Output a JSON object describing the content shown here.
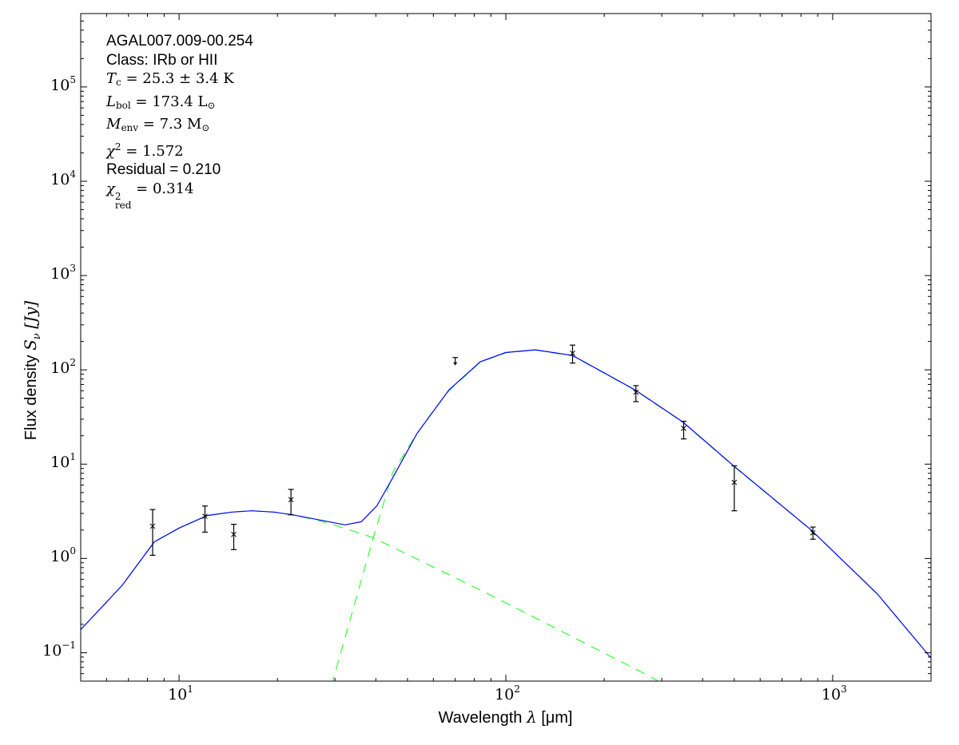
{
  "chart_data": {
    "type": "scatter",
    "xlabel": "Wavelength λ [μm]",
    "xlabel_parts": {
      "text": "Wavelength ",
      "symbol": "λ",
      "unit": "[μm]"
    },
    "ylabel": "Flux density S_ν [Jy]",
    "ylabel_parts": {
      "text": "Flux density ",
      "symbol": "S",
      "sub": "ν",
      "unit": "[Jy]"
    },
    "xscale": "log",
    "yscale": "log",
    "xlim": [
      5,
      2000
    ],
    "ylim": [
      0.05,
      600000
    ],
    "grid": false,
    "x_ticks": [
      {
        "base": "10",
        "exp": "1",
        "value": 10
      },
      {
        "base": "10",
        "exp": "2",
        "value": 100
      },
      {
        "base": "10",
        "exp": "3",
        "value": 1000
      }
    ],
    "y_ticks": [
      {
        "base": "10",
        "exp": "−1",
        "value": 0.1
      },
      {
        "base": "10",
        "exp": "0",
        "value": 1
      },
      {
        "base": "10",
        "exp": "1",
        "value": 10
      },
      {
        "base": "10",
        "exp": "2",
        "value": 100
      },
      {
        "base": "10",
        "exp": "3",
        "value": 1000
      },
      {
        "base": "10",
        "exp": "4",
        "value": 10000
      },
      {
        "base": "10",
        "exp": "5",
        "value": 100000
      }
    ],
    "annotations": {
      "source": "AGAL007.009-00.254",
      "class": "Class: IRb or HII",
      "tc": {
        "symbol": "T",
        "sub": "c",
        "rest": " = 25.3 ± 3.4 K"
      },
      "lbol": {
        "symbol": "L",
        "sub": "bol",
        "rest": " = 173.4 L",
        "rest_sub": "⊙"
      },
      "menv": {
        "symbol": "M",
        "sub": "env",
        "rest": " = 7.3 M",
        "rest_sub": "⊙"
      },
      "chi2": {
        "symbol": "χ",
        "sup": "2",
        "rest": " = 1.572"
      },
      "residual": "Residual = 0.210",
      "chi2red": {
        "symbol": "χ",
        "sup": "2",
        "sub": "red",
        "rest": " = 0.314"
      }
    },
    "colors": {
      "total_fit": "#0000ff",
      "components": "#33ff33",
      "data": "#000000"
    },
    "points": [
      {
        "x": 8.3,
        "y": 2.2,
        "ylo": 1.08,
        "yhi": 3.3
      },
      {
        "x": 12,
        "y": 2.8,
        "ylo": 1.9,
        "yhi": 3.6
      },
      {
        "x": 14.7,
        "y": 1.8,
        "ylo": 1.24,
        "yhi": 2.3
      },
      {
        "x": 22,
        "y": 4.2,
        "ylo": 2.9,
        "yhi": 5.4
      },
      {
        "x": 160,
        "y": 150,
        "ylo": 118,
        "yhi": 183
      },
      {
        "x": 250,
        "y": 58,
        "ylo": 46,
        "yhi": 68
      },
      {
        "x": 350,
        "y": 24,
        "ylo": 18.5,
        "yhi": 28.5
      },
      {
        "x": 500,
        "y": 6.4,
        "ylo": 3.2,
        "yhi": 9.6
      },
      {
        "x": 870,
        "y": 1.87,
        "ylo": 1.6,
        "yhi": 2.15
      }
    ],
    "upper_limits": [
      {
        "x": 70,
        "y": 135
      }
    ],
    "series": [
      {
        "role": "total",
        "style": "solid",
        "x": [
          5,
          6.7,
          8.4,
          10,
          12.2,
          14.5,
          16.7,
          19.5,
          22.3,
          27,
          32.2,
          36.1,
          40.3,
          45.1,
          53.4,
          66.9,
          83.5,
          100,
          123,
          160,
          249,
          348,
          494,
          860,
          1370,
          2000
        ],
        "y": [
          0.176,
          0.52,
          1.5,
          2.1,
          2.85,
          3.1,
          3.2,
          3.1,
          2.9,
          2.55,
          2.27,
          2.45,
          3.62,
          7.2,
          21,
          61,
          122,
          153,
          163,
          142,
          61,
          28,
          9.8,
          2.0,
          0.42,
          0.088
        ]
      },
      {
        "role": "warm-component",
        "style": "dashed",
        "x": [
          5,
          6.7,
          8.4,
          10,
          12.2,
          14.5,
          16.7,
          19.5,
          22.3,
          27,
          29.3,
          39.3,
          89.9,
          271,
          320
        ],
        "y": [
          0.176,
          0.52,
          1.5,
          2.1,
          2.85,
          3.1,
          3.2,
          3.1,
          2.9,
          2.5,
          2.31,
          1.66,
          0.408,
          0.058,
          0.042
        ]
      },
      {
        "role": "cold-component",
        "style": "dashed",
        "x": [
          28.5,
          29.6,
          39.3,
          45.1,
          53.4,
          59.7,
          66.9,
          83.5,
          100,
          123,
          160,
          249,
          348,
          494,
          860,
          1370,
          2000
        ],
        "y": [
          0.03,
          0.0515,
          1.66,
          8.2,
          21,
          36,
          60,
          121,
          152,
          162,
          141,
          60.5,
          27.8,
          9.7,
          1.99,
          0.42,
          0.088
        ]
      }
    ]
  }
}
